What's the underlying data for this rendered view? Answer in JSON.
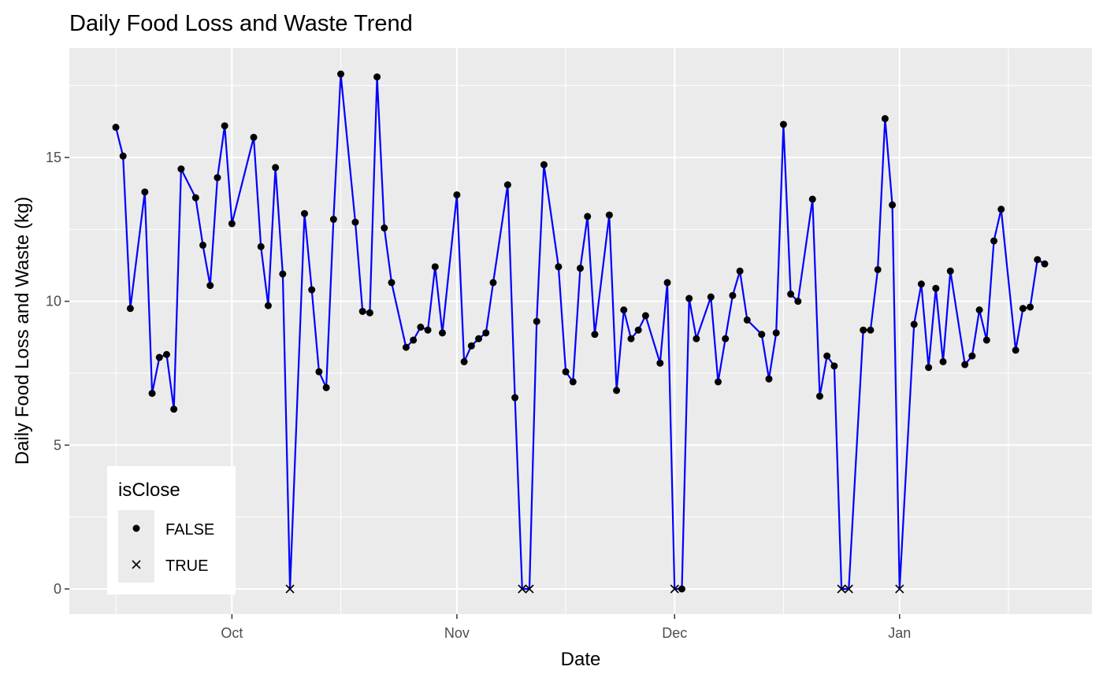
{
  "chart_data": {
    "type": "line",
    "title": "Daily Food Loss and Waste Trend",
    "xlabel": "Date",
    "ylabel": "Daily Food Loss and Waste (kg)",
    "x_ticks": [
      "Oct",
      "Nov",
      "Dec",
      "Jan"
    ],
    "y_ticks": [
      "0",
      "5",
      "10",
      "15"
    ],
    "ylim": [
      -0.9,
      18.4
    ],
    "legend": {
      "title": "isClose",
      "position": "bottom-left",
      "entries": [
        {
          "label": "FALSE",
          "shape": "dot"
        },
        {
          "label": "TRUE",
          "shape": "cross"
        }
      ]
    },
    "colors": {
      "line": "#0000ff",
      "points": "#000000",
      "panel": "#ebebeb",
      "grid": "#ffffff"
    },
    "grid": true,
    "series": [
      {
        "x": [
          "2023-09-15",
          "2023-09-16",
          "2023-09-17",
          "2023-09-19",
          "2023-09-20",
          "2023-09-21",
          "2023-09-22",
          "2023-09-23",
          "2023-09-24",
          "2023-09-26",
          "2023-09-27",
          "2023-09-28",
          "2023-09-29",
          "2023-09-30",
          "2023-10-01",
          "2023-10-04",
          "2023-10-05",
          "2023-10-06",
          "2023-10-07",
          "2023-10-08",
          "2023-10-09",
          "2023-10-11",
          "2023-10-12",
          "2023-10-13",
          "2023-10-14",
          "2023-10-15",
          "2023-10-16",
          "2023-10-18",
          "2023-10-19",
          "2023-10-20",
          "2023-10-21",
          "2023-10-22",
          "2023-10-23",
          "2023-10-25",
          "2023-10-26",
          "2023-10-27",
          "2023-10-28",
          "2023-10-29",
          "2023-10-30",
          "2023-11-01",
          "2023-11-02",
          "2023-11-03",
          "2023-11-04",
          "2023-11-05",
          "2023-11-06",
          "2023-11-08",
          "2023-11-09",
          "2023-11-10",
          "2023-11-11",
          "2023-11-12",
          "2023-11-13",
          "2023-11-15",
          "2023-11-16",
          "2023-11-17",
          "2023-11-18",
          "2023-11-19",
          "2023-11-20",
          "2023-11-22",
          "2023-11-23",
          "2023-11-24",
          "2023-11-25",
          "2023-11-26",
          "2023-11-27",
          "2023-11-29",
          "2023-11-30",
          "2023-12-01",
          "2023-12-02",
          "2023-12-03",
          "2023-12-04",
          "2023-12-06",
          "2023-12-07",
          "2023-12-08",
          "2023-12-09",
          "2023-12-10",
          "2023-12-11",
          "2023-12-13",
          "2023-12-14",
          "2023-12-15",
          "2023-12-16",
          "2023-12-17",
          "2023-12-18",
          "2023-12-20",
          "2023-12-21",
          "2023-12-22",
          "2023-12-23",
          "2023-12-24",
          "2023-12-25",
          "2023-12-27",
          "2023-12-28",
          "2023-12-29",
          "2023-12-30",
          "2023-12-31",
          "2024-01-01",
          "2024-01-03",
          "2024-01-04",
          "2024-01-05",
          "2024-01-06",
          "2024-01-07",
          "2024-01-08",
          "2024-01-10",
          "2024-01-11",
          "2024-01-12",
          "2024-01-13",
          "2024-01-14",
          "2024-01-15",
          "2024-01-17",
          "2024-01-18",
          "2024-01-19",
          "2024-01-20",
          "2024-01-21"
        ],
        "values": [
          16.05,
          15.05,
          9.75,
          13.8,
          6.8,
          8.05,
          8.15,
          6.25,
          14.6,
          13.6,
          11.95,
          10.55,
          14.3,
          16.1,
          12.7,
          15.7,
          11.9,
          9.85,
          14.65,
          10.95,
          0,
          13.05,
          10.4,
          7.55,
          7.0,
          12.85,
          17.9,
          12.75,
          9.65,
          9.6,
          17.8,
          12.55,
          10.65,
          8.4,
          8.65,
          9.1,
          9.0,
          11.2,
          8.9,
          13.7,
          7.9,
          8.45,
          8.7,
          8.9,
          10.65,
          14.05,
          6.65,
          0,
          0,
          9.3,
          14.75,
          11.2,
          7.55,
          7.2,
          11.15,
          12.95,
          8.85,
          13.0,
          6.9,
          9.7,
          8.7,
          9.0,
          9.5,
          7.85,
          10.65,
          0,
          0,
          10.1,
          8.7,
          10.15,
          7.2,
          8.7,
          10.2,
          11.05,
          9.35,
          8.85,
          7.3,
          8.9,
          16.15,
          10.25,
          10.0,
          13.55,
          6.7,
          8.1,
          7.75,
          0,
          0,
          9.0,
          9.0,
          11.1,
          16.35,
          13.35,
          0,
          9.2,
          10.6,
          7.7,
          10.45,
          7.9,
          11.05,
          7.8,
          8.1,
          9.7,
          8.65,
          12.1,
          13.2,
          8.3,
          9.75,
          9.8,
          11.45,
          11.3
        ],
        "isClose": [
          false,
          false,
          false,
          false,
          false,
          false,
          false,
          false,
          false,
          false,
          false,
          false,
          false,
          false,
          false,
          false,
          false,
          false,
          false,
          false,
          true,
          false,
          false,
          false,
          false,
          false,
          false,
          false,
          false,
          false,
          false,
          false,
          false,
          false,
          false,
          false,
          false,
          false,
          false,
          false,
          false,
          false,
          false,
          false,
          false,
          false,
          false,
          true,
          true,
          false,
          false,
          false,
          false,
          false,
          false,
          false,
          false,
          false,
          false,
          false,
          false,
          false,
          false,
          false,
          false,
          true,
          false,
          false,
          false,
          false,
          false,
          false,
          false,
          false,
          false,
          false,
          false,
          false,
          false,
          false,
          false,
          false,
          false,
          false,
          false,
          true,
          true,
          false,
          false,
          false,
          false,
          false,
          true,
          false,
          false,
          false,
          false,
          false,
          false,
          false,
          false,
          false,
          false,
          false,
          false,
          false,
          false,
          false,
          false,
          false
        ]
      }
    ]
  }
}
